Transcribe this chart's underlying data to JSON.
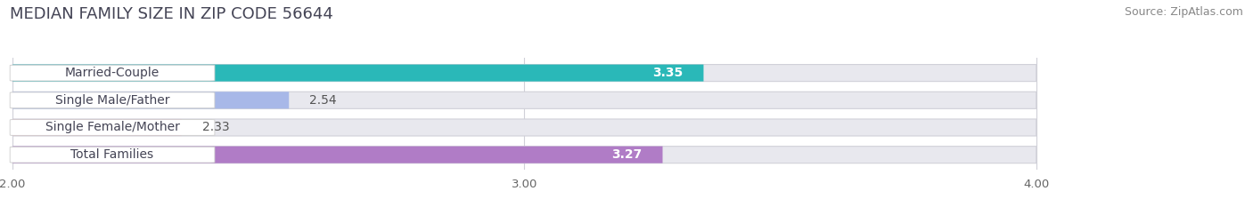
{
  "title": "MEDIAN FAMILY SIZE IN ZIP CODE 56644",
  "source": "Source: ZipAtlas.com",
  "categories": [
    "Married-Couple",
    "Single Male/Father",
    "Single Female/Mother",
    "Total Families"
  ],
  "values": [
    3.35,
    2.54,
    2.33,
    3.27
  ],
  "bar_colors": [
    "#2ab8b8",
    "#a8b8e8",
    "#f4a8c0",
    "#b07cc6"
  ],
  "xlim_min": 2.0,
  "xlim_max": 4.0,
  "xticks": [
    2.0,
    3.0,
    4.0
  ],
  "xtick_labels": [
    "2.00",
    "3.00",
    "4.00"
  ],
  "title_fontsize": 13,
  "source_fontsize": 9,
  "bar_label_fontsize": 10,
  "category_fontsize": 10,
  "bar_height": 0.62,
  "background_color": "#ffffff",
  "bar_bg_color": "#e8e8ee",
  "label_box_color": "#ffffff",
  "grid_color": "#d0d0d8",
  "value_label_color_inside": "#ffffff",
  "value_label_color_outside": "#555555"
}
